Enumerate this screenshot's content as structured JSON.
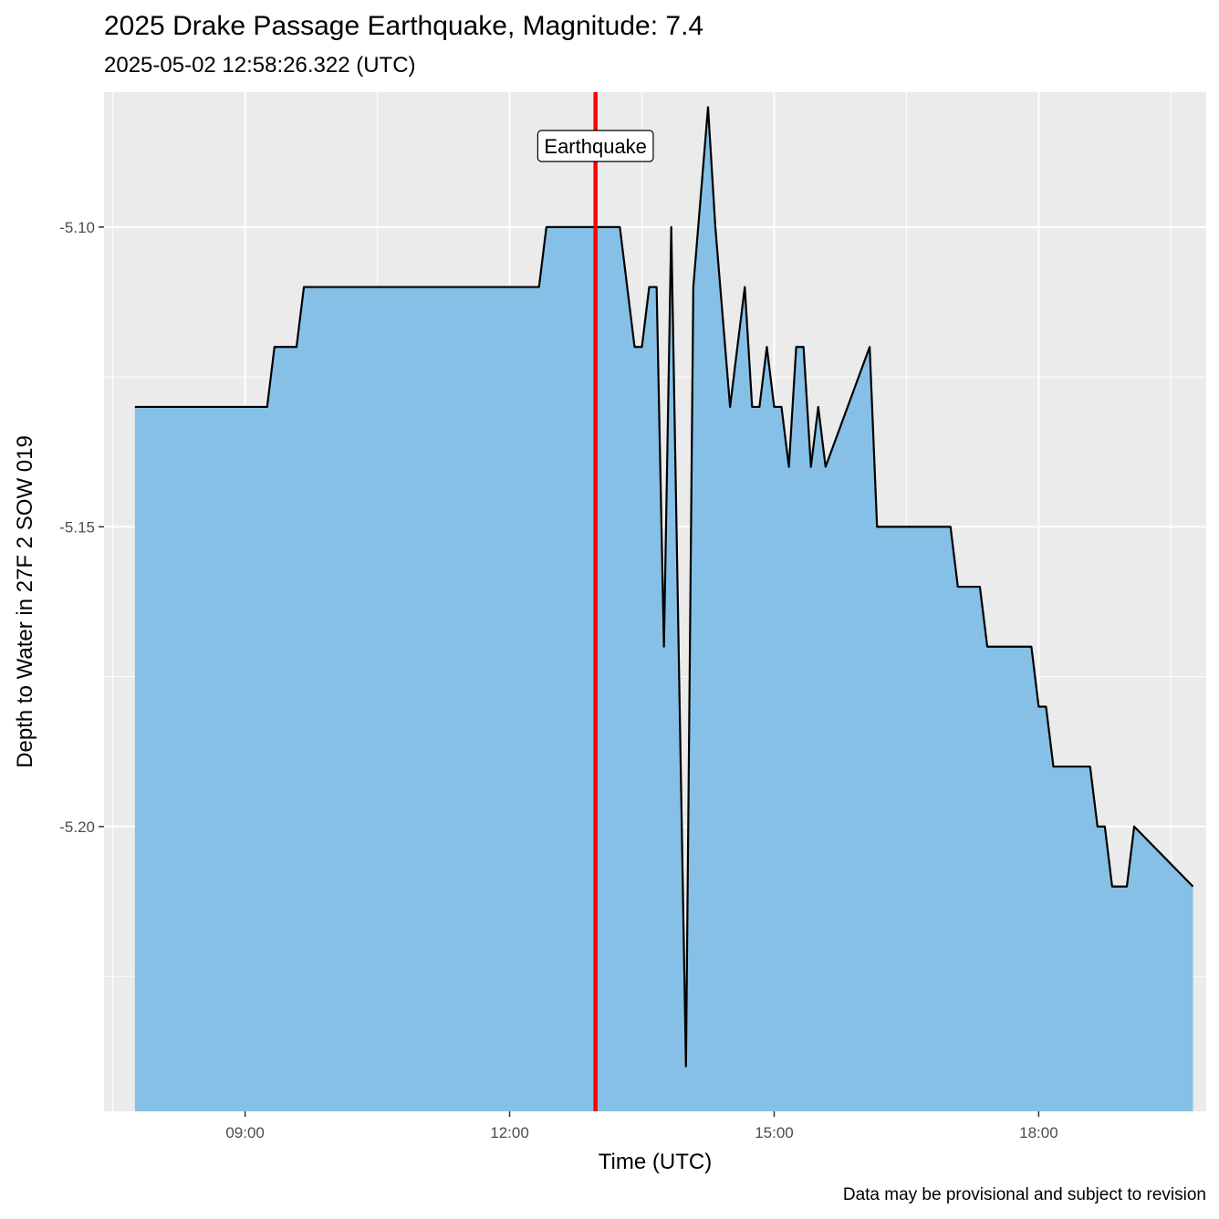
{
  "chart_data": {
    "type": "area",
    "title": "2025 Drake Passage Earthquake, Magnitude: 7.4",
    "subtitle": "2025-05-02 12:58:26.322 (UTC)",
    "caption": "Data may be provisional and subject to revision",
    "xlabel": "Time (UTC)",
    "ylabel": "Depth to Water in 27F 2 SOW 019",
    "x_unit": "hours (UTC)",
    "xlim": [
      7.4,
      19.9
    ],
    "ylim": [
      -5.2475,
      -5.0775
    ],
    "x_ticks": [
      {
        "value": 9,
        "label": "09:00"
      },
      {
        "value": 12,
        "label": "12:00"
      },
      {
        "value": 15,
        "label": "15:00"
      },
      {
        "value": 18,
        "label": "18:00"
      }
    ],
    "y_ticks": [
      {
        "value": -5.1,
        "label": "-5.10"
      },
      {
        "value": -5.15,
        "label": "-5.15"
      },
      {
        "value": -5.2,
        "label": "-5.20"
      }
    ],
    "grid": true,
    "fill_color": "#87c0e6",
    "line_color": "#000000",
    "event_line": {
      "x": 12.974,
      "color": "#ff0000",
      "label": "Earthquake"
    },
    "series": [
      {
        "x": [
          7.75,
          9.25,
          9.333,
          9.583,
          9.667,
          12.333,
          12.417,
          13.25,
          13.417,
          13.5,
          13.583,
          13.667,
          13.75,
          13.833,
          14.0,
          14.083,
          14.25,
          14.333,
          14.5,
          14.583,
          14.667,
          14.75,
          14.833,
          14.917,
          15.0,
          15.083,
          15.167,
          15.25,
          15.333,
          15.417,
          15.5,
          15.583,
          16.083,
          16.167,
          17.0,
          17.083,
          17.333,
          17.417,
          17.917,
          18.0,
          18.083,
          18.167,
          18.583,
          18.667,
          18.75,
          18.833,
          19.0,
          19.083,
          19.75
        ],
        "y": [
          -5.13,
          -5.13,
          -5.12,
          -5.12,
          -5.11,
          -5.11,
          -5.1,
          -5.1,
          -5.12,
          -5.12,
          -5.11,
          -5.11,
          -5.17,
          -5.1,
          -5.24,
          -5.11,
          -5.08,
          -5.1,
          -5.13,
          -5.12,
          -5.11,
          -5.13,
          -5.13,
          -5.12,
          -5.13,
          -5.13,
          -5.14,
          -5.12,
          -5.12,
          -5.14,
          -5.13,
          -5.14,
          -5.12,
          -5.15,
          -5.15,
          -5.16,
          -5.16,
          -5.17,
          -5.17,
          -5.18,
          -5.18,
          -5.19,
          -5.19,
          -5.2,
          -5.2,
          -5.21,
          -5.21,
          -5.2,
          -5.21
        ]
      }
    ]
  }
}
